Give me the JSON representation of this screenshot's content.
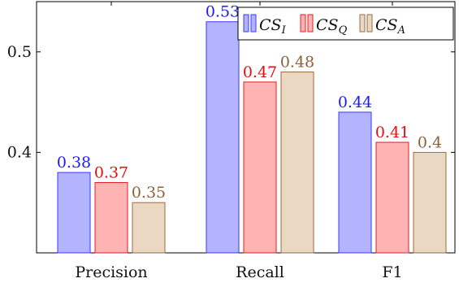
{
  "chart_data": {
    "type": "bar",
    "categories": [
      "Precision",
      "Recall",
      "F1"
    ],
    "series": [
      {
        "name": "CS_I",
        "legend_main": "CS",
        "legend_sub": "I",
        "values": [
          0.38,
          0.53,
          0.44
        ],
        "labels": [
          "0.38",
          "0.53",
          "0.44"
        ],
        "fill": "#b3b3ff",
        "stroke": "#3a3aff",
        "label_color": "#1a1aff"
      },
      {
        "name": "CS_Q",
        "legend_main": "CS",
        "legend_sub": "Q",
        "values": [
          0.37,
          0.47,
          0.41
        ],
        "labels": [
          "0.37",
          "0.47",
          "0.41"
        ],
        "fill": "#ffb3b3",
        "stroke": "#e02020",
        "label_color": "#e01010"
      },
      {
        "name": "CS_A",
        "legend_main": "CS",
        "legend_sub": "A",
        "values": [
          0.35,
          0.48,
          0.4
        ],
        "labels": [
          "0.35",
          "0.48",
          "0.4"
        ],
        "fill": "#ebd8c2",
        "stroke": "#9a6b3e",
        "label_color": "#8b6238"
      }
    ],
    "yticks": [
      0.4,
      0.5
    ],
    "ytick_labels": [
      "0.4",
      "0.5"
    ],
    "ylim": [
      0.3,
      0.55
    ],
    "grid": false,
    "legend_position": "top-right"
  }
}
